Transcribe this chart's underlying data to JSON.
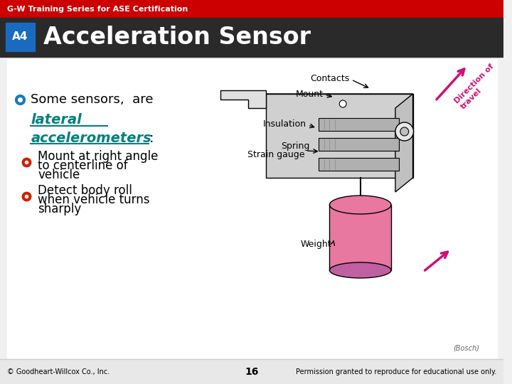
{
  "top_bar_color": "#cc0000",
  "top_bar_text": "G-W Training Series for ASE Certification",
  "top_bar_text_color": "#ffffff",
  "header_bg_color": "#2a2a2a",
  "header_title": "Acceleration Sensor",
  "header_title_color": "#ffffff",
  "badge_color": "#1a6bbf",
  "badge_text": "A4",
  "content_bg_color": "#f0f0f0",
  "bullet_blue_color": "#1a7abf",
  "bullet_red_color": "#cc2200",
  "teal_color": "#008080",
  "main_bullet_text": "Some sensors,  are",
  "sub_bullet1_line1": "Mount at right angle",
  "sub_bullet1_line2": "to centerline of",
  "sub_bullet1_line3": "vehicle",
  "sub_bullet2_line1": "Detect body roll",
  "sub_bullet2_line2": "when vehicle turns",
  "sub_bullet2_line3": "sharply",
  "footer_left": "© Goodheart-Willcox Co., Inc.",
  "footer_center": "16",
  "footer_right": "Permission granted to reproduce for educational use only.",
  "bosch_credit": "(Bosch)",
  "pink_color": "#e878a0",
  "arrow_pink_color": "#cc1177",
  "diagram_light": "#e8e8e8",
  "diagram_mid": "#d0d0d0",
  "diagram_dark": "#c0c0c0"
}
